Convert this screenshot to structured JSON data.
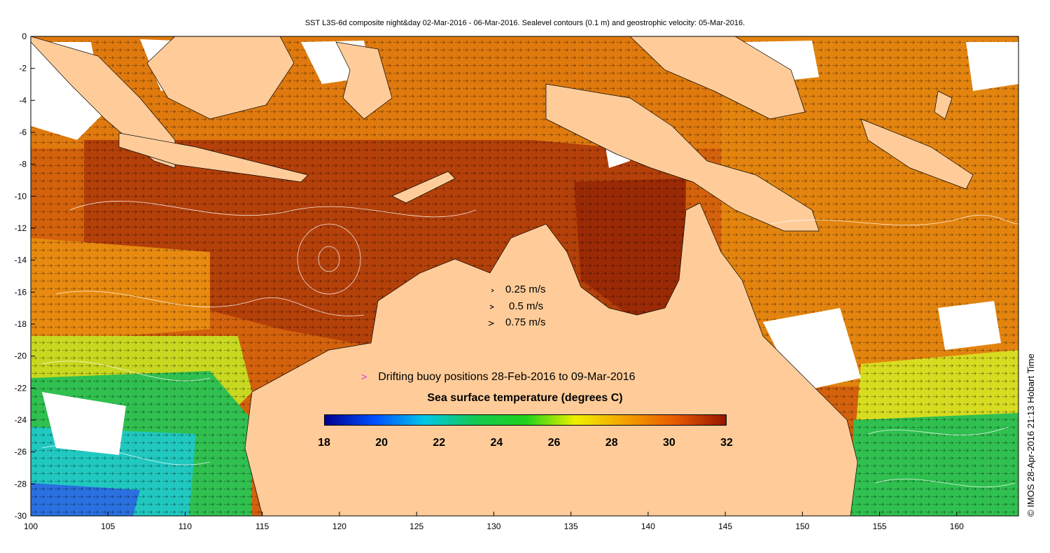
{
  "title": "SST L3S-6d composite night&day 02-Mar-2016 - 06-Mar-2016. Sealevel contours (0.1 m) and geostrophic velocity: 05-Mar-2016.",
  "axes": {
    "lon_ticks": [
      100,
      105,
      110,
      115,
      120,
      125,
      130,
      135,
      140,
      145,
      150,
      155,
      160
    ],
    "lat_ticks": [
      0,
      -2,
      -4,
      -6,
      -8,
      -10,
      -12,
      -14,
      -16,
      -18,
      -20,
      -22,
      -24,
      -26,
      -28,
      -30
    ],
    "lon_range": [
      100,
      164
    ],
    "lat_range": [
      -30,
      0
    ]
  },
  "velocity_legend": [
    {
      "label": "0.25 m/s"
    },
    {
      "label": "0.5 m/s"
    },
    {
      "label": "0.75 m/s"
    }
  ],
  "buoy_legend": {
    "marker": ">",
    "marker_color": "#e020e0",
    "label": "Drifting buoy positions 28-Feb-2016 to 09-Mar-2016"
  },
  "colorbar": {
    "title": "Sea surface temperature (degrees C)",
    "ticks": [
      "18",
      "20",
      "22",
      "24",
      "26",
      "28",
      "30",
      "32"
    ],
    "range": [
      18,
      32
    ],
    "colors": [
      "#00008f",
      "#0050ff",
      "#00c8e6",
      "#14c850",
      "#1ed21e",
      "#f0f000",
      "#f5a000",
      "#e65a00",
      "#961400"
    ]
  },
  "credit": "© IMOS 28-Apr-2016 21:13 Hobart Time",
  "colors": {
    "land": "#ffcc99",
    "sst_warm": "#c04a0a",
    "sst_hot": "#9a2a05",
    "sst_mid": "#e88a10",
    "sst_cool": "#30c050",
    "sst_cold": "#2a70e0",
    "no_data": "#ffffff"
  }
}
